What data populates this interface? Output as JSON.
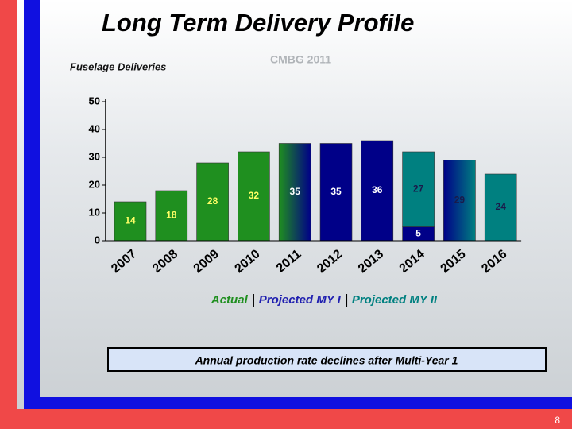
{
  "chart_data": {
    "type": "bar",
    "stacked": true,
    "title": "Long Term Delivery Profile",
    "subtitle": "Fuselage Deliveries",
    "annotation": "CMBG 2011",
    "categories": [
      "2007",
      "2008",
      "2009",
      "2010",
      "2011",
      "2012",
      "2013",
      "2014",
      "2015",
      "2016"
    ],
    "series": [
      {
        "name": "Actual",
        "color": "#1f8f1f",
        "label_color": "#ffff66",
        "values": [
          14,
          18,
          28,
          32,
          null,
          null,
          null,
          null,
          null,
          null
        ]
      },
      {
        "name": "Projected MY I",
        "color": "#000088",
        "label_color": "#ffffff",
        "values": [
          null,
          null,
          null,
          null,
          35,
          35,
          36,
          5,
          null,
          null
        ]
      },
      {
        "name": "Projected MY II",
        "color": "#008080",
        "label_color": "#1a1a4a",
        "values": [
          null,
          null,
          null,
          null,
          null,
          null,
          null,
          27,
          29,
          24
        ]
      }
    ],
    "ylim": [
      0,
      50
    ],
    "yticks": [
      0,
      10,
      20,
      30,
      40,
      50
    ]
  },
  "callout": "Annual production rate declines after Multi-Year 1",
  "page_number": "8"
}
